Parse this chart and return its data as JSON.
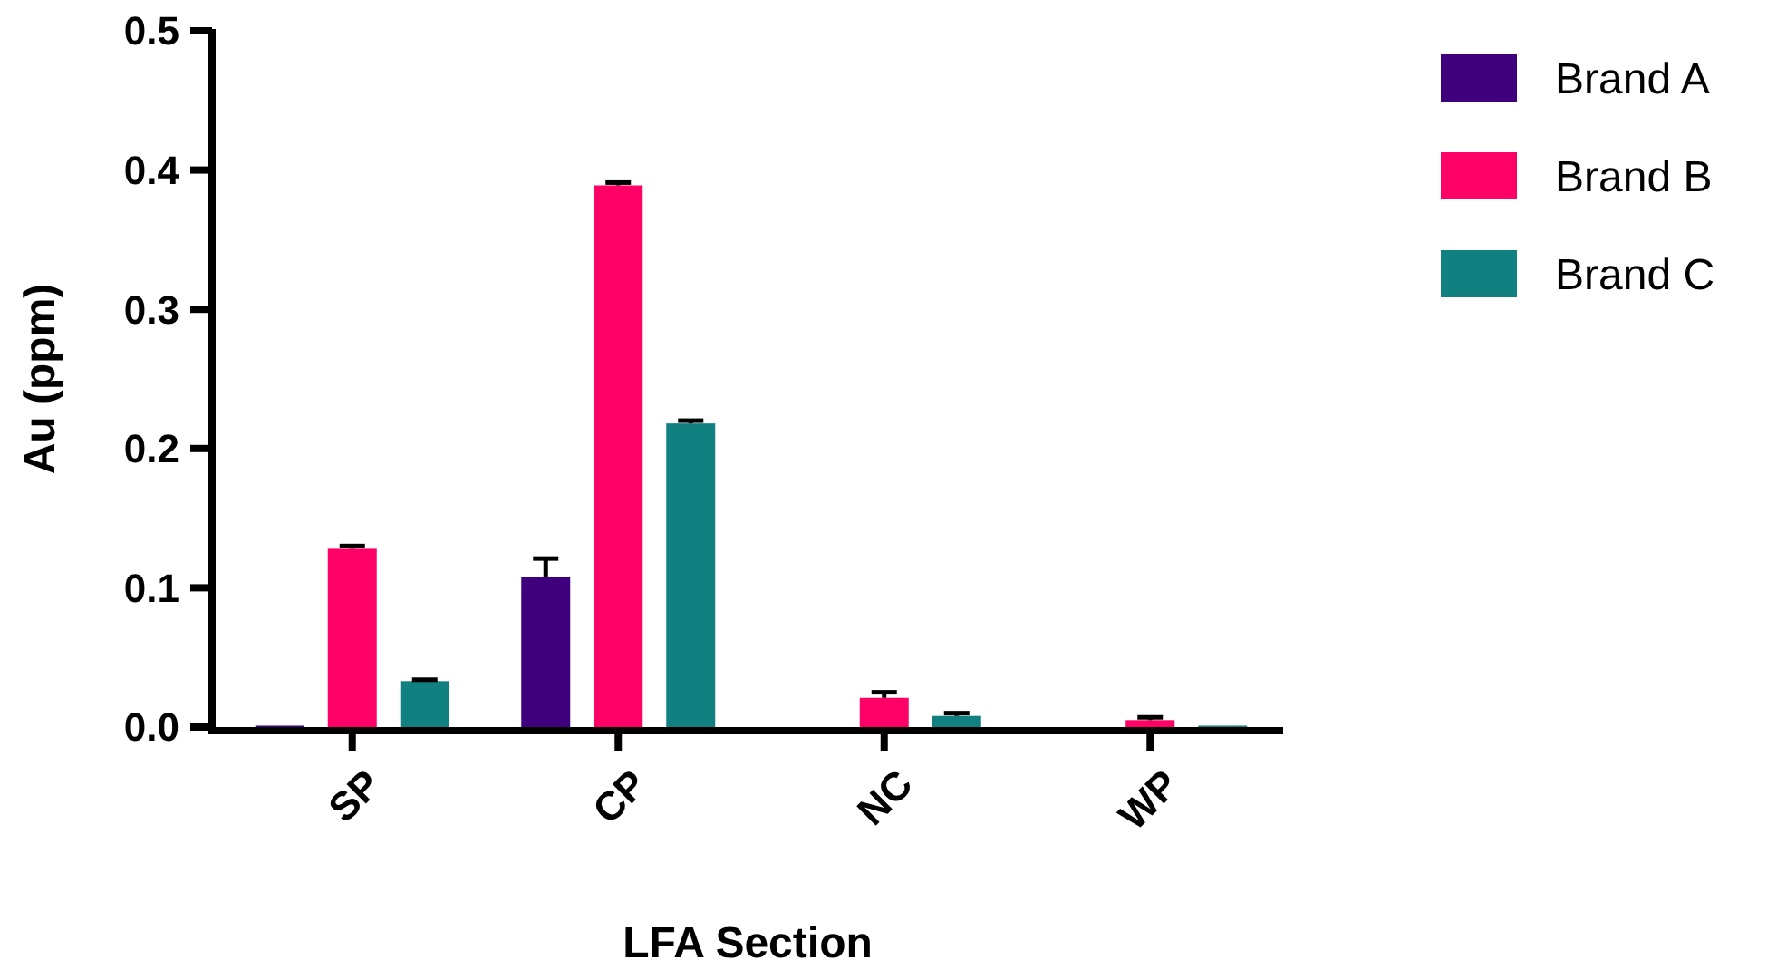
{
  "chart_data": {
    "type": "bar",
    "xlabel": "LFA Section",
    "ylabel": "Au (ppm)",
    "categories": [
      "SP",
      "CP",
      "NC",
      "WP"
    ],
    "series": [
      {
        "name": "Brand A",
        "color": "#3f007d",
        "values": [
          0.001,
          0.108,
          0,
          0
        ],
        "errors": [
          null,
          0.013,
          null,
          null
        ]
      },
      {
        "name": "Brand B",
        "color": "#ff0066",
        "values": [
          0.128,
          0.389,
          0.021,
          0.005
        ],
        "errors": [
          0.002,
          0.002,
          0.004,
          0.002
        ]
      },
      {
        "name": "Brand C",
        "color": "#118080",
        "values": [
          0.033,
          0.218,
          0.008,
          0.001
        ],
        "errors": [
          0.001,
          0.002,
          0.002,
          null
        ]
      }
    ],
    "ylim": [
      0,
      0.5
    ],
    "yticks": [
      {
        "value": 0,
        "label": "0.0"
      },
      0.1,
      0.2,
      0.3,
      0.4,
      0.5
    ],
    "grid": false,
    "legend": "right"
  }
}
